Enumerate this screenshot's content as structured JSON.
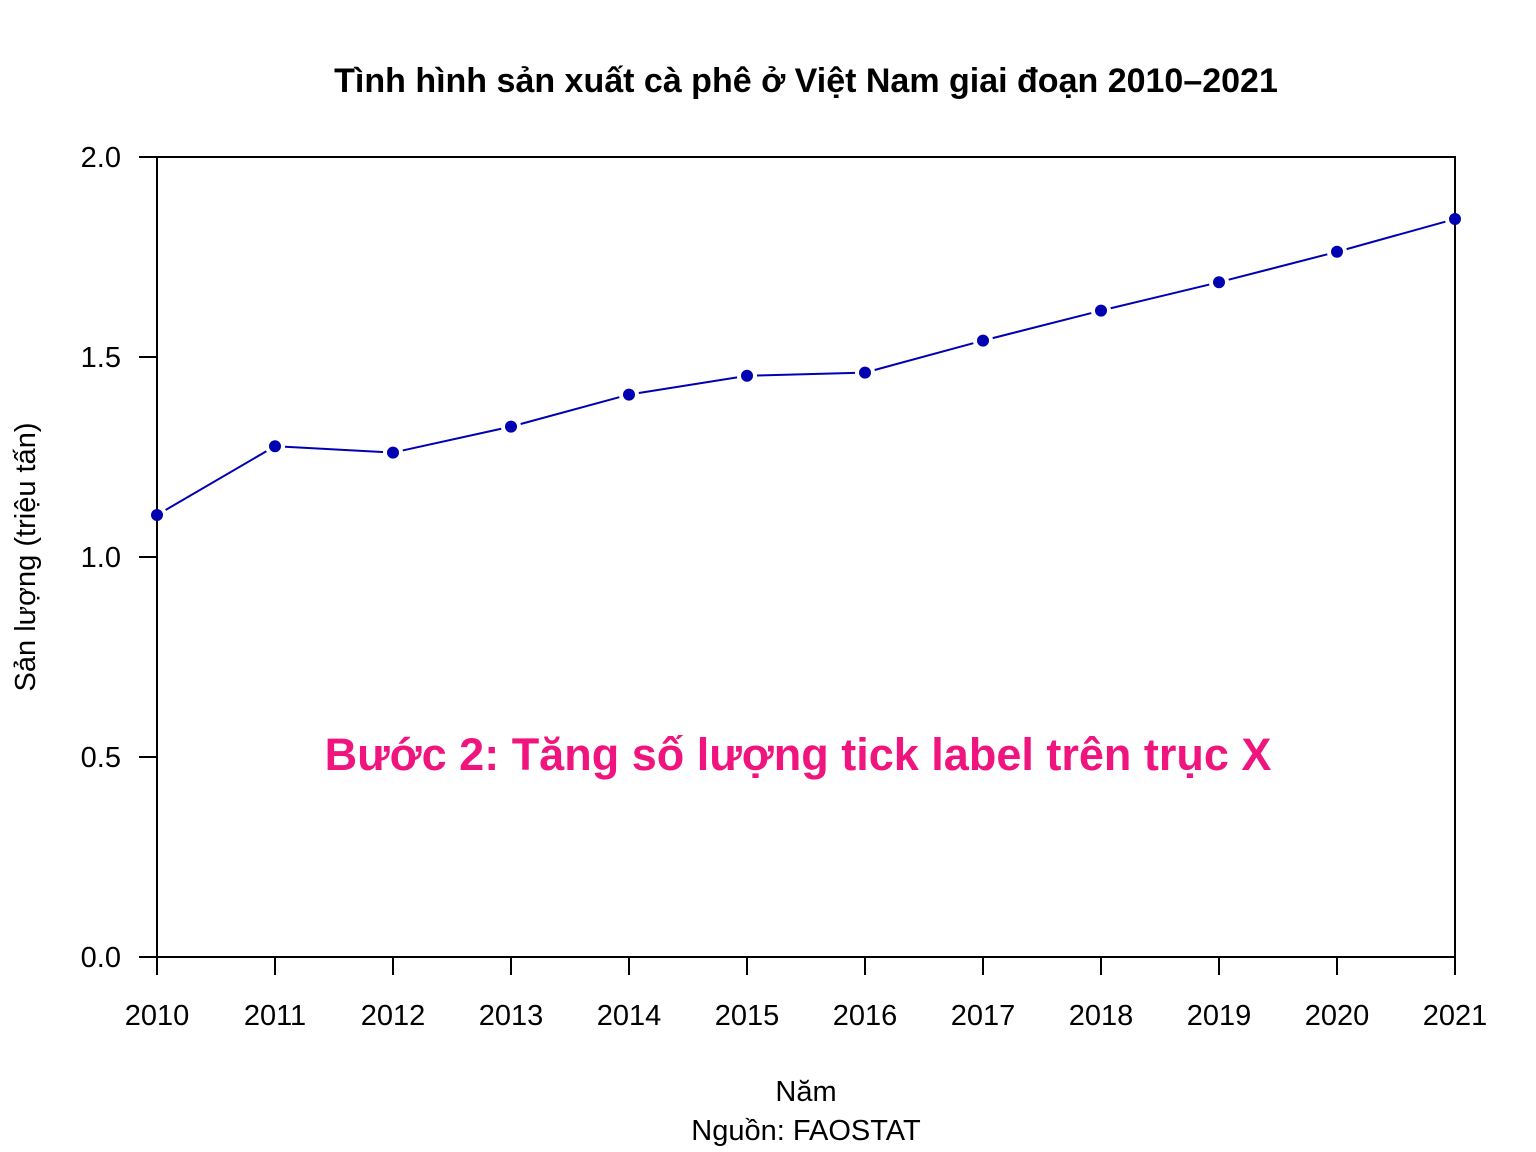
{
  "chart_data": {
    "type": "line",
    "title": "Tình hình sản xuất cà phê ở Việt Nam giai đoạn 2010–2021",
    "xlabel": "Năm",
    "caption": "Nguồn: FAOSTAT",
    "ylabel": "Sản lượng (triệu tấn)",
    "x": [
      2010,
      2011,
      2012,
      2013,
      2014,
      2015,
      2016,
      2017,
      2018,
      2019,
      2020,
      2021
    ],
    "x_tick_labels": [
      "2010",
      "2011",
      "2012",
      "2013",
      "2014",
      "2015",
      "2016",
      "2017",
      "2018",
      "2019",
      "2020",
      "2021"
    ],
    "series": [
      {
        "values": [
          1.105,
          1.277,
          1.261,
          1.326,
          1.406,
          1.453,
          1.461,
          1.541,
          1.616,
          1.687,
          1.763,
          1.845
        ],
        "color": "#0000b3"
      }
    ],
    "xlim": [
      2010,
      2021
    ],
    "ylim": [
      0,
      2
    ],
    "y_ticks": [
      0.0,
      0.5,
      1.0,
      1.5,
      2.0
    ],
    "y_tick_labels": [
      "0.0",
      "0.5",
      "1.0",
      "1.5",
      "2.0"
    ],
    "grid": false,
    "annotation": {
      "text": "Bước 2: Tăng số lượng tick label trên trục X",
      "color": "#f0147f"
    }
  }
}
